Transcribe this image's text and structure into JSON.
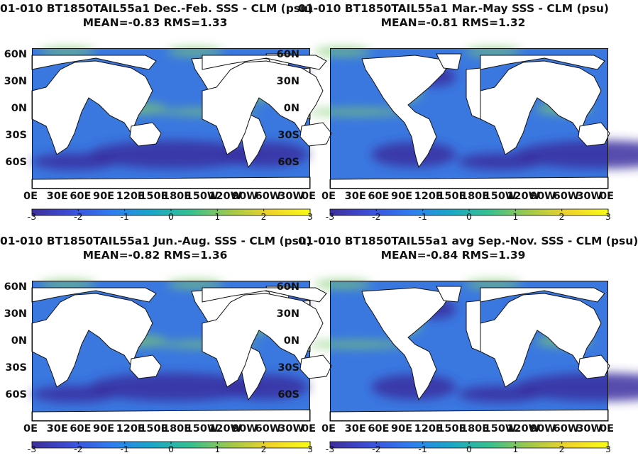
{
  "panels": [
    {
      "title": "01-010 BT1850TAIL55a1  Dec.-Feb. SSS - CLM (psu)",
      "overlap_title": "01-010 BT1850TAIL55a1",
      "stats": "MEAN=-0.83   RMS=1.33"
    },
    {
      "title": "01-010 BT1850TAIL55a1 Mar.-May SSS - CLM (psu)",
      "overlap_title": "",
      "stats": "MEAN=-0.81   RMS=1.32"
    },
    {
      "title": "01-010 BT1850TAIL55a1 Jun.-Aug. SSS - CLM (psu)",
      "overlap_title": "01-010 BT1850TAIL55a1",
      "stats": "MEAN=-0.82   RMS=1.36"
    },
    {
      "title": "01-010 BT1850TAIL55a1 avg Sep.-Nov. SSS - CLM (psu)",
      "overlap_title": "",
      "stats": "MEAN=-0.84   RMS=1.39"
    }
  ],
  "lat_labels": [
    "60N",
    "30N",
    "0N",
    "30S",
    "60S"
  ],
  "lon_labels": [
    "0E",
    "30E",
    "60E",
    "90E",
    "120E",
    "150E",
    "180E",
    "150W",
    "120W",
    "90W",
    "60W",
    "30W",
    "0E"
  ],
  "colorbar": {
    "ticks": [
      "-3",
      "-2",
      "-1",
      "0",
      "1",
      "2",
      "3"
    ],
    "range": [
      -3,
      3
    ],
    "colors": [
      "#3e2e9a",
      "#3c4fd9",
      "#2f7cf0",
      "#1aa6c9",
      "#36c08f",
      "#9fc94a",
      "#f0d42a",
      "#f9fb15"
    ]
  },
  "map_colors": {
    "land": "#ffffff",
    "ocean_base": "#3a78e0",
    "fresh": "#3a2fa0",
    "salty": "#7cc86e"
  }
}
